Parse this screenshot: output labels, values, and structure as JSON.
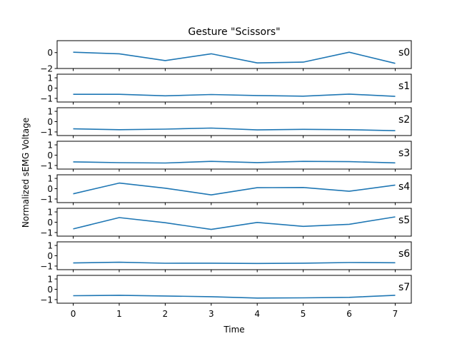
{
  "chart_data": {
    "type": "line",
    "title": "Gesture \"Scissors\"",
    "xlabel": "Time",
    "ylabel": "Normalized sEMG Voltage",
    "x": [
      0,
      1,
      2,
      3,
      4,
      5,
      6,
      7
    ],
    "xlim": [
      -0.35,
      7.35
    ],
    "grid": false,
    "legend": "none",
    "line_color": "#1f77b4",
    "series": [
      {
        "name": "s0",
        "ylim": [
          -2.0,
          1.5
        ],
        "yticks": [
          -2,
          0
        ],
        "ytick_labels": [
          "−2",
          "0"
        ],
        "values": [
          0.05,
          -0.15,
          -1.0,
          -0.15,
          -1.3,
          -1.2,
          0.05,
          -1.35
        ]
      },
      {
        "name": "s1",
        "ylim": [
          -1.35,
          1.35
        ],
        "yticks": [
          -1,
          0,
          1
        ],
        "ytick_labels": [
          "−1",
          "0",
          "1"
        ],
        "values": [
          -0.6,
          -0.6,
          -0.75,
          -0.62,
          -0.72,
          -0.78,
          -0.58,
          -0.8
        ]
      },
      {
        "name": "s2",
        "ylim": [
          -1.35,
          1.35
        ],
        "yticks": [
          -1,
          0,
          1
        ],
        "ytick_labels": [
          "−1",
          "0",
          "1"
        ],
        "values": [
          -0.7,
          -0.78,
          -0.73,
          -0.62,
          -0.8,
          -0.75,
          -0.78,
          -0.88
        ]
      },
      {
        "name": "s3",
        "ylim": [
          -1.35,
          1.35
        ],
        "yticks": [
          -1,
          0,
          1
        ],
        "ytick_labels": [
          "−1",
          "0",
          "1"
        ],
        "values": [
          -0.65,
          -0.73,
          -0.76,
          -0.6,
          -0.72,
          -0.6,
          -0.63,
          -0.75
        ]
      },
      {
        "name": "s4",
        "ylim": [
          -1.35,
          1.35
        ],
        "yticks": [
          -1,
          0,
          1
        ],
        "ytick_labels": [
          "−1",
          "0",
          "1"
        ],
        "values": [
          -0.5,
          0.55,
          0.05,
          -0.6,
          0.1,
          0.12,
          -0.25,
          0.35
        ]
      },
      {
        "name": "s5",
        "ylim": [
          -1.35,
          1.35
        ],
        "yticks": [
          -1,
          0,
          1
        ],
        "ytick_labels": [
          "−1",
          "0",
          "1"
        ],
        "values": [
          -0.65,
          0.45,
          -0.05,
          -0.7,
          -0.02,
          -0.4,
          -0.2,
          0.52
        ]
      },
      {
        "name": "s6",
        "ylim": [
          -1.35,
          1.35
        ],
        "yticks": [
          -1,
          0,
          1
        ],
        "ytick_labels": [
          "−1",
          "0",
          "1"
        ],
        "values": [
          -0.7,
          -0.63,
          -0.73,
          -0.72,
          -0.75,
          -0.72,
          -0.66,
          -0.68
        ]
      },
      {
        "name": "s7",
        "ylim": [
          -1.35,
          1.35
        ],
        "yticks": [
          -1,
          0,
          1
        ],
        "ytick_labels": [
          "−1",
          "0",
          "1"
        ],
        "values": [
          -0.62,
          -0.58,
          -0.65,
          -0.72,
          -0.85,
          -0.83,
          -0.78,
          -0.58
        ]
      }
    ]
  }
}
